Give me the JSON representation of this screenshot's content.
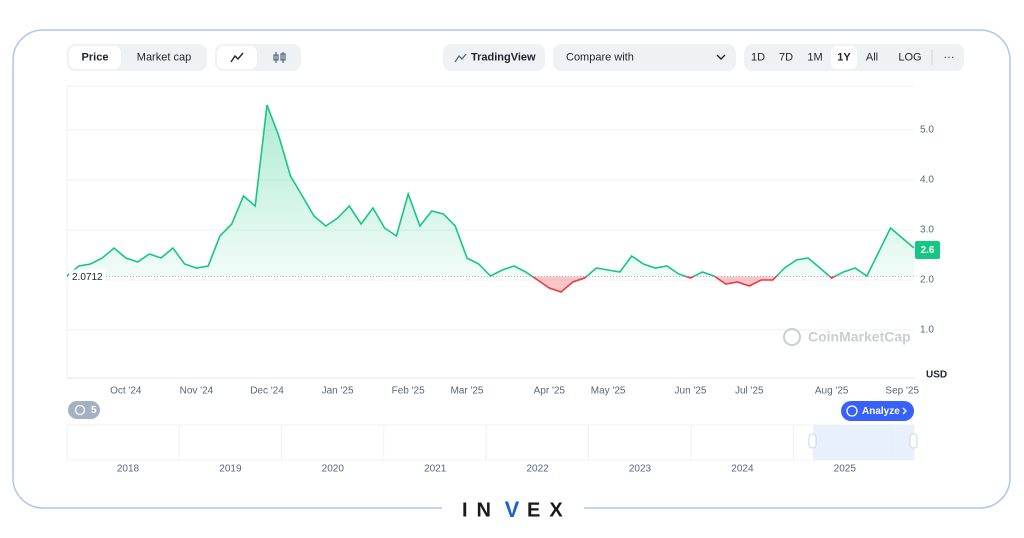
{
  "toolbar": {
    "tabs": [
      "Price",
      "Market cap"
    ],
    "tradingview": "TradingView",
    "compare": "Compare with",
    "ranges": [
      "1D",
      "7D",
      "1M",
      "1Y",
      "All",
      "LOG"
    ],
    "more": "···"
  },
  "chart_data": {
    "type": "line",
    "categories": [
      null,
      null,
      null,
      null,
      null,
      "Oct '24",
      null,
      null,
      null,
      null,
      null,
      "Nov '24",
      null,
      null,
      null,
      null,
      null,
      "Dec '24",
      null,
      null,
      null,
      null,
      null,
      "Jan '25",
      null,
      null,
      null,
      null,
      null,
      "Feb '25",
      null,
      null,
      null,
      null,
      "Mar '25",
      null,
      null,
      null,
      null,
      null,
      null,
      "Apr '25",
      null,
      null,
      null,
      null,
      "May '25",
      null,
      null,
      null,
      null,
      null,
      null,
      "Jun '25",
      null,
      null,
      null,
      null,
      "Jul '25",
      null,
      null,
      null,
      null,
      null,
      null,
      "Aug '25",
      null,
      null,
      null,
      null,
      null,
      "Sep '25",
      null
    ],
    "values": [
      2.08,
      2.28,
      2.32,
      2.44,
      2.64,
      2.44,
      2.36,
      2.52,
      2.44,
      2.64,
      2.32,
      2.24,
      2.28,
      2.88,
      3.12,
      3.68,
      3.48,
      5.5,
      4.88,
      4.08,
      3.68,
      3.28,
      3.08,
      3.24,
      3.48,
      3.12,
      3.44,
      3.04,
      2.88,
      3.72,
      3.08,
      3.38,
      3.32,
      3.08,
      2.44,
      2.32,
      2.08,
      2.2,
      2.28,
      2.16,
      2.0,
      1.84,
      1.76,
      1.96,
      2.04,
      2.24,
      2.2,
      2.16,
      2.48,
      2.32,
      2.24,
      2.28,
      2.12,
      2.04,
      2.16,
      2.08,
      1.92,
      1.96,
      1.88,
      2.0,
      2.0,
      2.24,
      2.4,
      2.44,
      2.24,
      2.04,
      2.16,
      2.24,
      2.08,
      2.56,
      3.04,
      2.84,
      2.64
    ],
    "color": "#16c784",
    "below_color": "#ea3943",
    "baseline": 2.0712,
    "current_price": 2.6,
    "ylim": [
      0,
      5.92
    ],
    "yticks": [
      {
        "value": 1,
        "label": "1.0"
      },
      {
        "value": 2,
        "label": "2.0"
      },
      {
        "value": 3,
        "label": "3.0"
      },
      {
        "value": 4,
        "label": "4.0"
      },
      {
        "value": 5,
        "label": "5.0"
      }
    ],
    "y_unit": "USD",
    "grid": true,
    "watermark": "CoinMarketCap"
  },
  "history_badge": "5",
  "analyze": "Analyze",
  "navigator": {
    "years": [
      "2018",
      "2019",
      "2020",
      "2021",
      "2022",
      "2023",
      "2024",
      "2025"
    ]
  },
  "logo": [
    "IN",
    "V",
    "EX"
  ]
}
